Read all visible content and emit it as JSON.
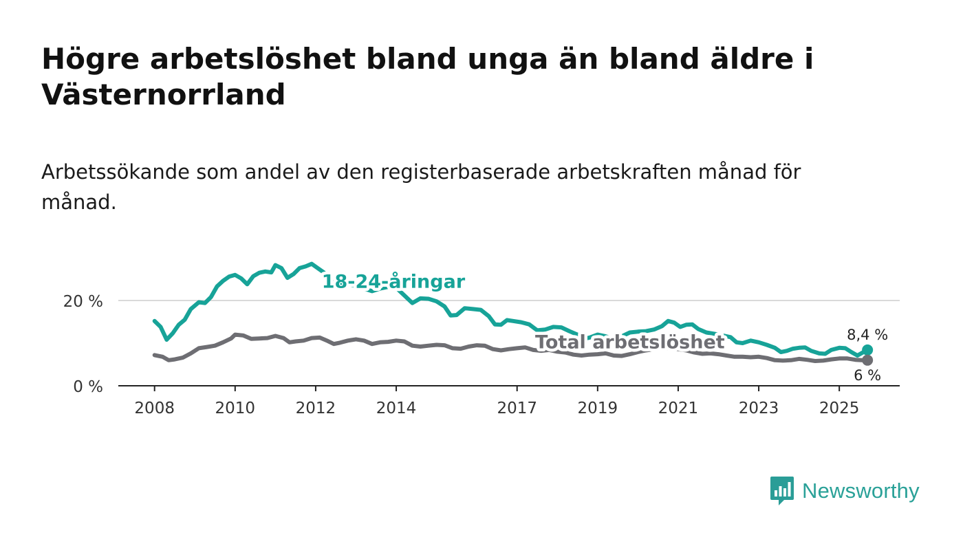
{
  "title": "Högre arbetslöshet bland unga än bland äldre i Västernorrland",
  "subtitle": "Arbetssökande som andel av den registerbaserade arbetskraften månad för månad.",
  "brand": {
    "name": "Newsworthy",
    "color": "#2a9d97"
  },
  "chart_data": {
    "type": "line",
    "title": "Högre arbetslöshet bland unga än bland äldre i Västernorrland",
    "xlabel": "",
    "ylabel": "",
    "ylim": [
      0,
      30
    ],
    "grid": true,
    "y_ticks": [
      {
        "value": 0,
        "label": "0 %"
      },
      {
        "value": 20,
        "label": "20 %"
      }
    ],
    "x_ticks": [
      {
        "value": 2008,
        "label": "2008"
      },
      {
        "value": 2010,
        "label": "2010"
      },
      {
        "value": 2012,
        "label": "2012"
      },
      {
        "value": 2014,
        "label": "2014"
      },
      {
        "value": 2017,
        "label": "2017"
      },
      {
        "value": 2019,
        "label": "2019"
      },
      {
        "value": 2021,
        "label": "2021"
      },
      {
        "value": 2023,
        "label": "2023"
      },
      {
        "value": 2025,
        "label": "2025"
      }
    ],
    "xlim": [
      2007.1,
      2026.5
    ],
    "series": [
      {
        "name": "18-24-åringar",
        "color": "#17a398",
        "end_label": "8,4 %",
        "points": [
          [
            2008.0,
            15.2
          ],
          [
            2008.15,
            13.8
          ],
          [
            2008.3,
            10.8
          ],
          [
            2008.45,
            12.3
          ],
          [
            2008.6,
            14.3
          ],
          [
            2008.75,
            15.5
          ],
          [
            2008.9,
            18.0
          ],
          [
            2009.1,
            19.6
          ],
          [
            2009.25,
            19.4
          ],
          [
            2009.4,
            20.8
          ],
          [
            2009.55,
            23.3
          ],
          [
            2009.7,
            24.6
          ],
          [
            2009.85,
            25.6
          ],
          [
            2010.0,
            26.0
          ],
          [
            2010.15,
            25.2
          ],
          [
            2010.3,
            23.8
          ],
          [
            2010.45,
            25.7
          ],
          [
            2010.6,
            26.5
          ],
          [
            2010.75,
            26.8
          ],
          [
            2010.9,
            26.6
          ],
          [
            2011.0,
            28.3
          ],
          [
            2011.15,
            27.6
          ],
          [
            2011.3,
            25.3
          ],
          [
            2011.45,
            26.2
          ],
          [
            2011.6,
            27.6
          ],
          [
            2011.75,
            28.0
          ],
          [
            2011.9,
            28.6
          ],
          [
            2012.05,
            27.6
          ],
          [
            2012.2,
            26.6
          ],
          [
            2012.4,
            24.8
          ],
          [
            2012.6,
            24.0
          ],
          [
            2012.8,
            23.8
          ],
          [
            2013.0,
            23.5
          ],
          [
            2013.2,
            22.8
          ],
          [
            2013.4,
            22.2
          ],
          [
            2013.6,
            22.8
          ],
          [
            2013.8,
            23.2
          ],
          [
            2014.0,
            23.0
          ],
          [
            2014.2,
            21.2
          ],
          [
            2014.4,
            19.4
          ],
          [
            2014.6,
            20.5
          ],
          [
            2014.8,
            20.4
          ],
          [
            2015.0,
            19.8
          ],
          [
            2015.2,
            18.6
          ],
          [
            2015.35,
            16.5
          ],
          [
            2015.5,
            16.6
          ],
          [
            2015.7,
            18.2
          ],
          [
            2015.9,
            18.0
          ],
          [
            2016.1,
            17.8
          ],
          [
            2016.3,
            16.3
          ],
          [
            2016.45,
            14.4
          ],
          [
            2016.6,
            14.3
          ],
          [
            2016.75,
            15.4
          ],
          [
            2016.9,
            15.2
          ],
          [
            2017.1,
            14.9
          ],
          [
            2017.3,
            14.4
          ],
          [
            2017.5,
            13.0
          ],
          [
            2017.7,
            13.2
          ],
          [
            2017.9,
            13.8
          ],
          [
            2018.1,
            13.7
          ],
          [
            2018.3,
            12.8
          ],
          [
            2018.5,
            12.0
          ],
          [
            2018.65,
            11.0
          ],
          [
            2018.8,
            11.3
          ],
          [
            2019.0,
            12.0
          ],
          [
            2019.2,
            11.6
          ],
          [
            2019.4,
            11.0
          ],
          [
            2019.6,
            11.6
          ],
          [
            2019.8,
            12.5
          ],
          [
            2020.0,
            12.7
          ],
          [
            2020.2,
            12.8
          ],
          [
            2020.4,
            13.2
          ],
          [
            2020.6,
            14.0
          ],
          [
            2020.75,
            15.2
          ],
          [
            2020.9,
            14.8
          ],
          [
            2021.05,
            13.8
          ],
          [
            2021.2,
            14.3
          ],
          [
            2021.35,
            14.4
          ],
          [
            2021.5,
            13.3
          ],
          [
            2021.7,
            12.5
          ],
          [
            2021.9,
            12.2
          ],
          [
            2022.1,
            11.8
          ],
          [
            2022.3,
            11.4
          ],
          [
            2022.45,
            10.2
          ],
          [
            2022.6,
            10.0
          ],
          [
            2022.8,
            10.6
          ],
          [
            2023.0,
            10.2
          ],
          [
            2023.2,
            9.6
          ],
          [
            2023.4,
            8.9
          ],
          [
            2023.55,
            7.9
          ],
          [
            2023.7,
            8.2
          ],
          [
            2023.85,
            8.7
          ],
          [
            2024.0,
            8.9
          ],
          [
            2024.15,
            9.0
          ],
          [
            2024.3,
            8.2
          ],
          [
            2024.5,
            7.6
          ],
          [
            2024.65,
            7.5
          ],
          [
            2024.8,
            8.4
          ],
          [
            2025.0,
            8.9
          ],
          [
            2025.15,
            8.8
          ],
          [
            2025.3,
            7.9
          ],
          [
            2025.45,
            7.1
          ],
          [
            2025.6,
            7.9
          ],
          [
            2025.7,
            8.4
          ]
        ]
      },
      {
        "name": "Total arbetslöshet",
        "color": "#6e6e73",
        "end_label": "6 %",
        "points": [
          [
            2008.0,
            7.2
          ],
          [
            2008.2,
            6.8
          ],
          [
            2008.35,
            6.0
          ],
          [
            2008.5,
            6.2
          ],
          [
            2008.7,
            6.6
          ],
          [
            2008.9,
            7.6
          ],
          [
            2009.1,
            8.8
          ],
          [
            2009.3,
            9.1
          ],
          [
            2009.5,
            9.4
          ],
          [
            2009.7,
            10.2
          ],
          [
            2009.9,
            11.1
          ],
          [
            2010.0,
            12.0
          ],
          [
            2010.2,
            11.8
          ],
          [
            2010.4,
            11.0
          ],
          [
            2010.6,
            11.1
          ],
          [
            2010.8,
            11.2
          ],
          [
            2011.0,
            11.7
          ],
          [
            2011.2,
            11.2
          ],
          [
            2011.35,
            10.2
          ],
          [
            2011.5,
            10.4
          ],
          [
            2011.7,
            10.6
          ],
          [
            2011.9,
            11.2
          ],
          [
            2012.1,
            11.3
          ],
          [
            2012.3,
            10.5
          ],
          [
            2012.45,
            9.8
          ],
          [
            2012.6,
            10.1
          ],
          [
            2012.8,
            10.6
          ],
          [
            2013.0,
            10.9
          ],
          [
            2013.2,
            10.6
          ],
          [
            2013.4,
            9.8
          ],
          [
            2013.6,
            10.2
          ],
          [
            2013.8,
            10.3
          ],
          [
            2014.0,
            10.6
          ],
          [
            2014.2,
            10.4
          ],
          [
            2014.4,
            9.4
          ],
          [
            2014.6,
            9.2
          ],
          [
            2014.8,
            9.4
          ],
          [
            2015.0,
            9.6
          ],
          [
            2015.2,
            9.5
          ],
          [
            2015.4,
            8.8
          ],
          [
            2015.6,
            8.7
          ],
          [
            2015.8,
            9.2
          ],
          [
            2016.0,
            9.5
          ],
          [
            2016.2,
            9.4
          ],
          [
            2016.4,
            8.6
          ],
          [
            2016.6,
            8.3
          ],
          [
            2016.8,
            8.6
          ],
          [
            2017.0,
            8.8
          ],
          [
            2017.2,
            9.0
          ],
          [
            2017.4,
            8.4
          ],
          [
            2017.6,
            8.2
          ],
          [
            2017.8,
            8.4
          ],
          [
            2018.0,
            8.0
          ],
          [
            2018.2,
            7.8
          ],
          [
            2018.4,
            7.3
          ],
          [
            2018.6,
            7.1
          ],
          [
            2018.8,
            7.3
          ],
          [
            2019.0,
            7.4
          ],
          [
            2019.2,
            7.6
          ],
          [
            2019.4,
            7.1
          ],
          [
            2019.6,
            7.0
          ],
          [
            2019.8,
            7.4
          ],
          [
            2020.0,
            7.9
          ],
          [
            2020.2,
            8.3
          ],
          [
            2020.4,
            8.6
          ],
          [
            2020.6,
            8.9
          ],
          [
            2020.8,
            8.8
          ],
          [
            2021.0,
            8.6
          ],
          [
            2021.2,
            8.3
          ],
          [
            2021.4,
            7.8
          ],
          [
            2021.6,
            7.5
          ],
          [
            2021.8,
            7.6
          ],
          [
            2022.0,
            7.4
          ],
          [
            2022.2,
            7.1
          ],
          [
            2022.4,
            6.8
          ],
          [
            2022.6,
            6.8
          ],
          [
            2022.8,
            6.7
          ],
          [
            2023.0,
            6.8
          ],
          [
            2023.2,
            6.5
          ],
          [
            2023.4,
            6.0
          ],
          [
            2023.6,
            5.9
          ],
          [
            2023.8,
            6.0
          ],
          [
            2024.0,
            6.3
          ],
          [
            2024.2,
            6.1
          ],
          [
            2024.4,
            5.8
          ],
          [
            2024.6,
            5.9
          ],
          [
            2024.8,
            6.2
          ],
          [
            2025.0,
            6.4
          ],
          [
            2025.2,
            6.4
          ],
          [
            2025.4,
            6.1
          ],
          [
            2025.55,
            6.0
          ],
          [
            2025.7,
            6.0
          ]
        ]
      }
    ],
    "annotations": [
      {
        "text": "18-24-åringar",
        "series": 0,
        "x": 2012.15,
        "y": 23.0,
        "color": "#17a398"
      },
      {
        "text": "Total arbetslöshet",
        "series": 1,
        "x": 2017.45,
        "y": 8.8,
        "color": "#6e6e73"
      }
    ]
  }
}
